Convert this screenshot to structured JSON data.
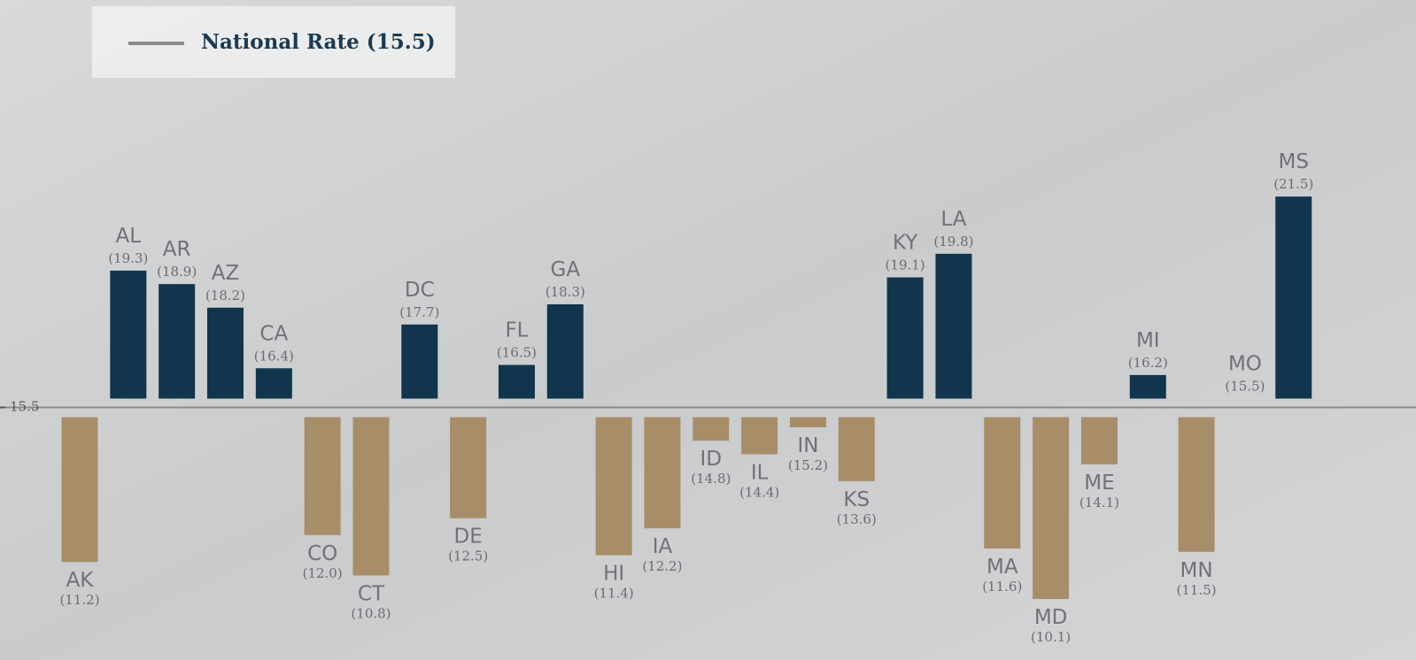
{
  "chart_data": {
    "type": "diverging-bar",
    "legend_label": "National Rate (15.5)",
    "categories": [
      "AK",
      "AL",
      "AR",
      "AZ",
      "CA",
      "CO",
      "CT",
      "DC",
      "DE",
      "FL",
      "GA",
      "HI",
      "IA",
      "ID",
      "IL",
      "IN",
      "KS",
      "KY",
      "LA",
      "MA",
      "MD",
      "ME",
      "MI",
      "MN",
      "MO",
      "MS"
    ],
    "values": [
      11.2,
      19.3,
      18.9,
      18.2,
      16.4,
      12.0,
      10.8,
      17.7,
      12.5,
      16.5,
      18.3,
      11.4,
      12.2,
      14.8,
      14.4,
      15.2,
      13.6,
      19.1,
      19.8,
      11.6,
      10.1,
      14.1,
      16.2,
      11.5,
      15.5,
      21.5
    ],
    "value_labels": [
      "(11.2)",
      "(19.3)",
      "(18.9)",
      "(18.2)",
      "(16.4)",
      "(12.0)",
      "(10.8)",
      "(17.7)",
      "(12.5)",
      "(16.5)",
      "(18.3)",
      "(11.4)",
      "(12.2)",
      "(14.8)",
      "(14.4)",
      "(15.2)",
      "(13.6)",
      "(19.1)",
      "(19.8)",
      "(11.6)",
      "(10.1)",
      "(14.1)",
      "(16.2)",
      "(11.5)",
      "(15.5)",
      "(21.5)"
    ],
    "above_color": "#10354d",
    "below_color": "#a88d69",
    "reference_color": "#8a8a8a",
    "ylim": [
      8,
      27.6
    ],
    "yticks": [
      15.5
    ]
  }
}
